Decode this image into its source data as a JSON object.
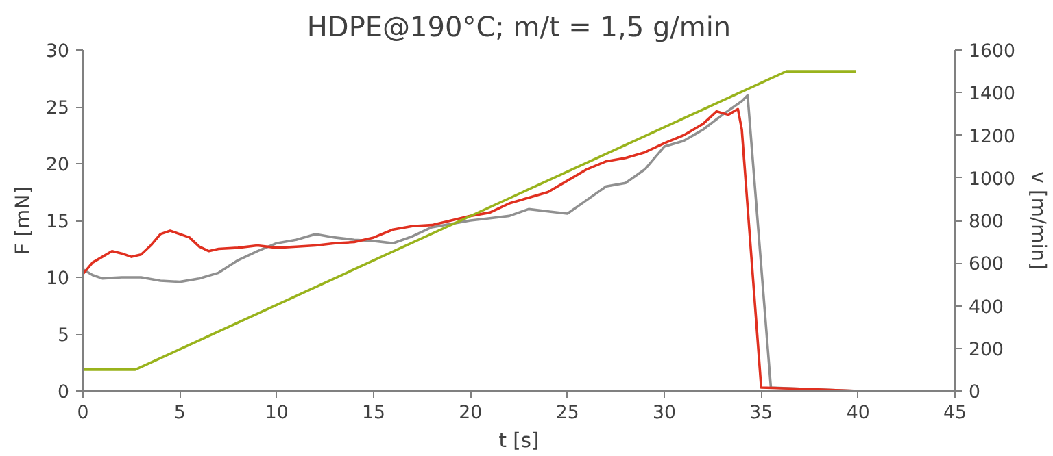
{
  "chart_data": {
    "type": "line",
    "title": "HDPE@190°C; m/t = 1,5 g/min",
    "xlabel": "t [s]",
    "ylabel": "F [mN]",
    "y2label": "v [m/min]",
    "xlim": [
      0,
      45
    ],
    "xticks": [
      0,
      5,
      10,
      15,
      20,
      25,
      30,
      35,
      40,
      45
    ],
    "ylim": [
      0,
      30
    ],
    "yticks": [
      0,
      5,
      10,
      15,
      20,
      25,
      30
    ],
    "y2lim": [
      0,
      1600
    ],
    "y2ticks": [
      0,
      200,
      400,
      600,
      800,
      1000,
      1200,
      1400,
      1600
    ],
    "grid": false,
    "marker": "none",
    "line_style": "solid",
    "series": [
      {
        "color": "#909090",
        "x": [
          0,
          0.5,
          1,
          2,
          3,
          4,
          5,
          6,
          7,
          8,
          9,
          10,
          11,
          12,
          13,
          14,
          15,
          16,
          17,
          18,
          19,
          20,
          21,
          22,
          23,
          24,
          25,
          26,
          27,
          28,
          29,
          30,
          31,
          32,
          33,
          34,
          34.3,
          35.5,
          37,
          40
        ],
        "values": [
          10.7,
          10.2,
          9.9,
          10.0,
          10.0,
          9.7,
          9.6,
          9.9,
          10.4,
          11.5,
          12.3,
          13.0,
          13.3,
          13.8,
          13.5,
          13.3,
          13.2,
          13.0,
          13.6,
          14.4,
          14.7,
          15.0,
          15.2,
          15.4,
          16.0,
          15.8,
          15.6,
          16.8,
          18.0,
          18.3,
          19.5,
          21.5,
          22.0,
          23.0,
          24.3,
          25.5,
          26.0,
          0.3,
          0.2,
          0.0
        ]
      },
      {
        "color": "#e03020",
        "x": [
          0,
          0.5,
          1,
          1.5,
          2,
          2.5,
          3,
          3.5,
          4,
          4.5,
          5,
          5.5,
          6,
          6.5,
          7,
          8,
          9,
          10,
          11,
          12,
          13,
          14,
          15,
          16,
          17,
          18,
          19,
          20,
          21,
          22,
          23,
          24,
          25,
          26,
          27,
          28,
          29,
          30,
          31,
          32,
          32.7,
          33.3,
          33.8,
          34.0,
          35,
          37,
          40
        ],
        "values": [
          10.3,
          11.3,
          11.8,
          12.3,
          12.1,
          11.8,
          12.0,
          12.8,
          13.8,
          14.1,
          13.8,
          13.5,
          12.7,
          12.3,
          12.5,
          12.6,
          12.8,
          12.6,
          12.7,
          12.8,
          13.0,
          13.1,
          13.5,
          14.2,
          14.5,
          14.6,
          15.0,
          15.4,
          15.7,
          16.5,
          17.0,
          17.5,
          18.5,
          19.5,
          20.2,
          20.5,
          21.0,
          21.8,
          22.5,
          23.5,
          24.6,
          24.3,
          24.8,
          23.0,
          0.3,
          0.2,
          0.0
        ]
      },
      {
        "color": "#99b31c",
        "axis": "y2",
        "x": [
          0,
          2.7,
          36.3,
          39.9
        ],
        "values": [
          100,
          100,
          1500,
          1500
        ]
      }
    ]
  }
}
